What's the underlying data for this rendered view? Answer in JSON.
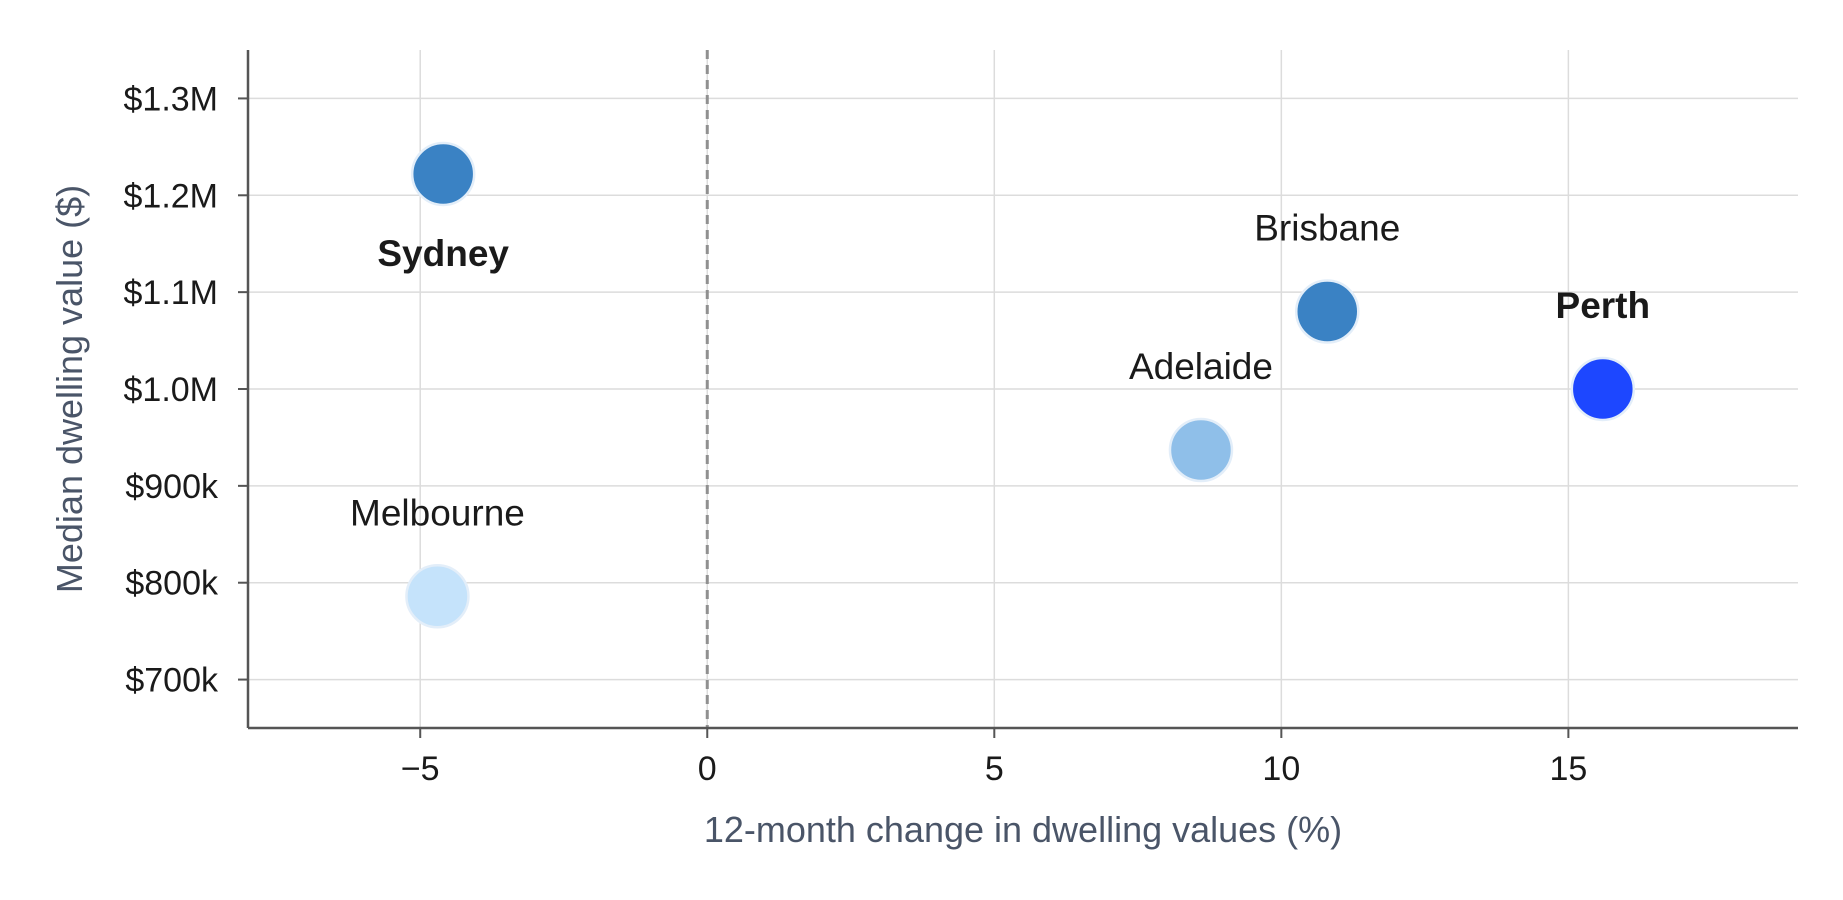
{
  "chart_data": {
    "type": "scatter",
    "title": "",
    "xlabel": "12-month change in dwelling values (%)",
    "ylabel": "Median dwelling value ($)",
    "xlim": [
      -8.0,
      19.0
    ],
    "ylim": [
      650000,
      1350000
    ],
    "xticks": [
      -5,
      0,
      5,
      10,
      15
    ],
    "xtick_labels": [
      "−5",
      "0",
      "5",
      "10",
      "15"
    ],
    "yticks": [
      700000,
      800000,
      900000,
      1000000,
      1100000,
      1200000,
      1300000
    ],
    "ytick_labels": [
      "$700k",
      "$800k",
      "$900k",
      "$1.0M",
      "$1.1M",
      "$1.2M",
      "$1.3M"
    ],
    "grid": true,
    "reference_line": {
      "x": 0,
      "style": "dashed",
      "color": "#909090"
    },
    "points": [
      {
        "name": "Sydney",
        "x": -4.6,
        "y": 1222000,
        "color": "#3a82c4",
        "bold": true,
        "label_position": "below"
      },
      {
        "name": "Melbourne",
        "x": -4.7,
        "y": 786000,
        "color": "#c5e3fb",
        "bold": false,
        "label_position": "above"
      },
      {
        "name": "Brisbane",
        "x": 10.8,
        "y": 1080000,
        "color": "#3a82c4",
        "bold": false,
        "label_position": "above"
      },
      {
        "name": "Adelaide",
        "x": 8.6,
        "y": 937000,
        "color": "#8fbfe9",
        "bold": false,
        "label_position": "above"
      },
      {
        "name": "Perth",
        "x": 15.6,
        "y": 1000000,
        "color": "#1d47ff",
        "bold": true,
        "label_position": "above"
      }
    ]
  }
}
